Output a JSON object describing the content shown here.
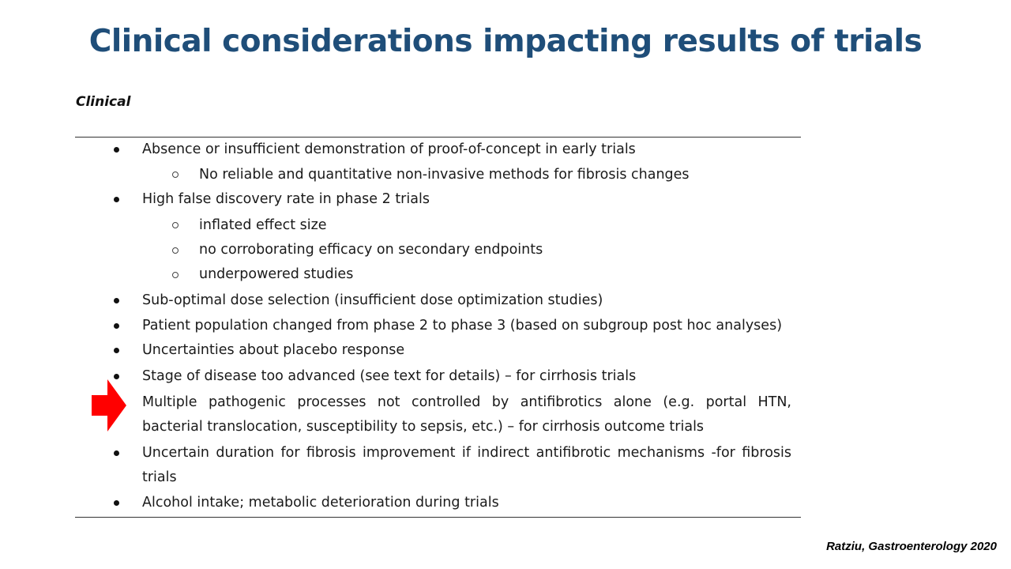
{
  "title": "Clinical considerations impacting results of trials",
  "section_heading": "Clinical",
  "items": [
    {
      "text": "Absence or insufficient demonstration of proof-of-concept in early trials",
      "sub": [
        "No reliable and quantitative non-invasive methods for fibrosis changes"
      ]
    },
    {
      "text": "High false discovery rate in phase 2 trials",
      "sub": [
        "inflated effect size",
        "no corroborating efficacy on secondary endpoints",
        "underpowered studies"
      ]
    },
    {
      "text": "Sub-optimal dose selection (insufficient dose optimization studies)"
    },
    {
      "text": "Patient population changed from phase 2 to phase 3 (based on subgroup post hoc analyses)"
    },
    {
      "text": "Uncertainties about placebo response"
    },
    {
      "text": "Stage of disease too advanced (see text for details) – for cirrhosis trials"
    },
    {
      "text_line1": "Multiple pathogenic processes not controlled by antifibrotics alone (e.g. portal HTN,",
      "text_line2": "bacterial translocation, susceptibility to sepsis, etc.) – for cirrhosis outcome trials"
    },
    {
      "text_line1": "Uncertain duration for fibrosis improvement if indirect antifibrotic mechanisms -for fibrosis",
      "text_line2": "trials"
    },
    {
      "text": "Alcohol intake; metabolic deterioration during trials"
    }
  ],
  "highlight_arrow": {
    "icon": "red-right-arrow-icon",
    "color": "#ff0000",
    "points_to_item": 7
  },
  "citation": "Ratziu, Gastroenterology 2020",
  "colors": {
    "title": "#1f4e79",
    "text": "#1a1a1a",
    "arrow": "#ff0000"
  }
}
